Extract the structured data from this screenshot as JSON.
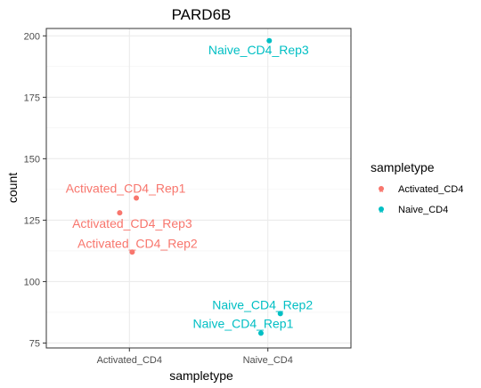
{
  "chart_data": {
    "type": "scatter",
    "title": "PARD6B",
    "xlabel": "sampletype",
    "ylabel": "count",
    "categories": [
      "Activated_CD4",
      "Naive_CD4"
    ],
    "ylim": [
      73,
      203
    ],
    "yticks": [
      75,
      100,
      125,
      150,
      175,
      200
    ],
    "grid": true,
    "legend": {
      "title": "sampletype",
      "placement": "right",
      "entries": [
        "Activated_CD4",
        "Naive_CD4"
      ]
    },
    "colors": {
      "Activated_CD4": "#F8766D",
      "Naive_CD4": "#00BFC4"
    },
    "points": [
      {
        "label": "Activated_CD4_Rep1",
        "group": "Activated_CD4",
        "x": 1.05,
        "y": 134
      },
      {
        "label": "Activated_CD4_Rep3",
        "group": "Activated_CD4",
        "x": 0.93,
        "y": 128
      },
      {
        "label": "Activated_CD4_Rep2",
        "group": "Activated_CD4",
        "x": 1.02,
        "y": 112
      },
      {
        "label": "Naive_CD4_Rep3",
        "group": "Naive_CD4",
        "x": 2.01,
        "y": 198
      },
      {
        "label": "Naive_CD4_Rep2",
        "group": "Naive_CD4",
        "x": 2.09,
        "y": 87
      },
      {
        "label": "Naive_CD4_Rep1",
        "group": "Naive_CD4",
        "x": 1.95,
        "y": 79
      }
    ]
  }
}
